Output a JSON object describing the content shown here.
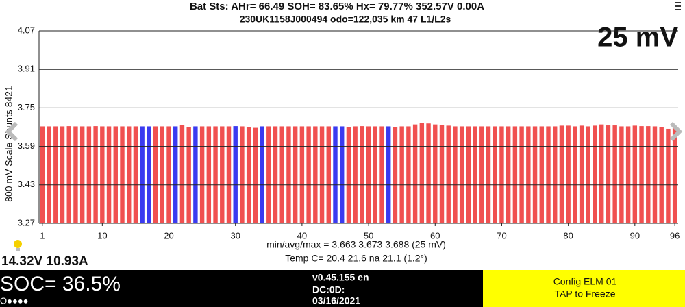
{
  "chart_data": {
    "type": "bar",
    "title": "Bat Sts:  AHr= 66.49  SOH= 83.65%  Hx= 79.77%  352.57V 0.00A",
    "subtitle": "230UK1158J000494 odo=122,035 km  47 L1/L2s",
    "scale_label": "25 mV",
    "y_label": "800 mV Scale   Shunts 8421",
    "stats": "min/avg/max = 3.663 3.673 3.688  (25 mV)",
    "temps": "Temp C= 20.4  21.6  na  21.1  (1.2°)",
    "x": [
      1,
      2,
      3,
      4,
      5,
      6,
      7,
      8,
      9,
      10,
      11,
      12,
      13,
      14,
      15,
      16,
      17,
      18,
      19,
      20,
      21,
      22,
      23,
      24,
      25,
      26,
      27,
      28,
      29,
      30,
      31,
      32,
      33,
      34,
      35,
      36,
      37,
      38,
      39,
      40,
      41,
      42,
      43,
      44,
      45,
      46,
      47,
      48,
      49,
      50,
      51,
      52,
      53,
      54,
      55,
      56,
      57,
      58,
      59,
      60,
      61,
      62,
      63,
      64,
      65,
      66,
      67,
      68,
      69,
      70,
      71,
      72,
      73,
      74,
      75,
      76,
      77,
      78,
      79,
      80,
      81,
      82,
      83,
      84,
      85,
      86,
      87,
      88,
      89,
      90,
      91,
      92,
      93,
      94,
      95,
      96
    ],
    "values": [
      3.673,
      3.673,
      3.673,
      3.673,
      3.674,
      3.673,
      3.673,
      3.673,
      3.674,
      3.673,
      3.673,
      3.673,
      3.673,
      3.673,
      3.673,
      3.673,
      3.673,
      3.673,
      3.673,
      3.673,
      3.673,
      3.678,
      3.671,
      3.673,
      3.673,
      3.673,
      3.673,
      3.673,
      3.673,
      3.674,
      3.673,
      3.671,
      3.667,
      3.673,
      3.673,
      3.673,
      3.673,
      3.673,
      3.673,
      3.673,
      3.673,
      3.673,
      3.673,
      3.673,
      3.673,
      3.673,
      3.671,
      3.673,
      3.674,
      3.673,
      3.673,
      3.673,
      3.673,
      3.671,
      3.673,
      3.673,
      3.681,
      3.688,
      3.685,
      3.681,
      3.678,
      3.676,
      3.673,
      3.673,
      3.673,
      3.673,
      3.673,
      3.673,
      3.673,
      3.673,
      3.673,
      3.673,
      3.673,
      3.673,
      3.673,
      3.673,
      3.673,
      3.673,
      3.676,
      3.676,
      3.673,
      3.676,
      3.673,
      3.676,
      3.681,
      3.677,
      3.677,
      3.673,
      3.673,
      3.676,
      3.674,
      3.674,
      3.673,
      3.671,
      3.663,
      3.673
    ],
    "colors": [
      "#f05050",
      "#f05050",
      "#f05050",
      "#f05050",
      "#f05050",
      "#f05050",
      "#f05050",
      "#f05050",
      "#f05050",
      "#f05050",
      "#f05050",
      "#f05050",
      "#f05050",
      "#f05050",
      "#f05050",
      "#3a3af0",
      "#3a3af0",
      "#f05050",
      "#f05050",
      "#f05050",
      "#3a3af0",
      "#f05050",
      "#f05050",
      "#3a3af0",
      "#f05050",
      "#f05050",
      "#f05050",
      "#f05050",
      "#f05050",
      "#3a3af0",
      "#f05050",
      "#f05050",
      "#f05050",
      "#3a3af0",
      "#f05050",
      "#f05050",
      "#f05050",
      "#f05050",
      "#f05050",
      "#f05050",
      "#f05050",
      "#f05050",
      "#f05050",
      "#f05050",
      "#3a3af0",
      "#3a3af0",
      "#f05050",
      "#f05050",
      "#f05050",
      "#f05050",
      "#f05050",
      "#f05050",
      "#3a3af0",
      "#f05050",
      "#f05050",
      "#f05050",
      "#f05050",
      "#f05050",
      "#f05050",
      "#f05050",
      "#f05050",
      "#f05050",
      "#f05050",
      "#f05050",
      "#f05050",
      "#f05050",
      "#f05050",
      "#f05050",
      "#f05050",
      "#f05050",
      "#f05050",
      "#f05050",
      "#f05050",
      "#f05050",
      "#f05050",
      "#f05050",
      "#f05050",
      "#f05050",
      "#f05050",
      "#f05050",
      "#f05050",
      "#f05050",
      "#f05050",
      "#f05050",
      "#f05050",
      "#f05050",
      "#f05050",
      "#f05050",
      "#f05050",
      "#f05050",
      "#f05050",
      "#f05050",
      "#f05050",
      "#f05050",
      "#f05050",
      "#f05050"
    ],
    "xlim": [
      0.5,
      96.5
    ],
    "xticks": [
      1,
      10,
      20,
      30,
      40,
      50,
      60,
      70,
      80,
      90,
      96
    ],
    "ylim": [
      3.27,
      4.07
    ],
    "yticks": [
      3.27,
      3.43,
      3.59,
      3.75,
      3.91,
      4.07
    ],
    "grid": true
  },
  "status": {
    "power": "14.32V 10.93A",
    "soc": "SOC= 36.5%",
    "dots": "O●●●●",
    "version": "v0.45.155 en",
    "dc": "DC:0D:",
    "date": "03/16/2021",
    "config": "Config ELM  01",
    "freeze": "TAP to Freeze"
  }
}
